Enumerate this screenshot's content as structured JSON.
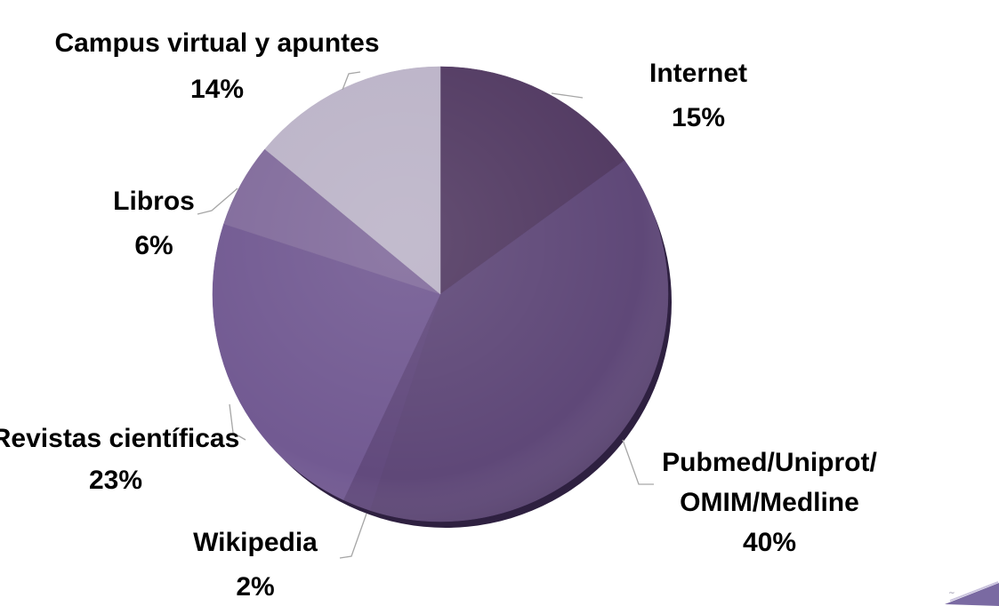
{
  "chart_data": {
    "type": "pie",
    "start_angle_deg": 0,
    "direction": "clockwise",
    "slices": [
      {
        "label": "Internet",
        "value": 15,
        "value_label": "15%",
        "color": "#533b63"
      },
      {
        "label": "Pubmed/Uniprot/\nOMIM/Medline",
        "value": 40,
        "value_label": "40%",
        "color": "#5f4878"
      },
      {
        "label": "Wikipedia",
        "value": 2,
        "value_label": "2%",
        "color": "#624a7d"
      },
      {
        "label": "Revistas científicas",
        "value": 23,
        "value_label": "23%",
        "color": "#725a92"
      },
      {
        "label": "Libros",
        "value": 6,
        "value_label": "6%",
        "color": "#826c9c"
      },
      {
        "label": "Campus virtual y apuntes",
        "value": 14,
        "value_label": "14%",
        "color": "#bcb4c8"
      }
    ],
    "title": "",
    "legend": "none",
    "data_labels": "outside with leader lines"
  }
}
